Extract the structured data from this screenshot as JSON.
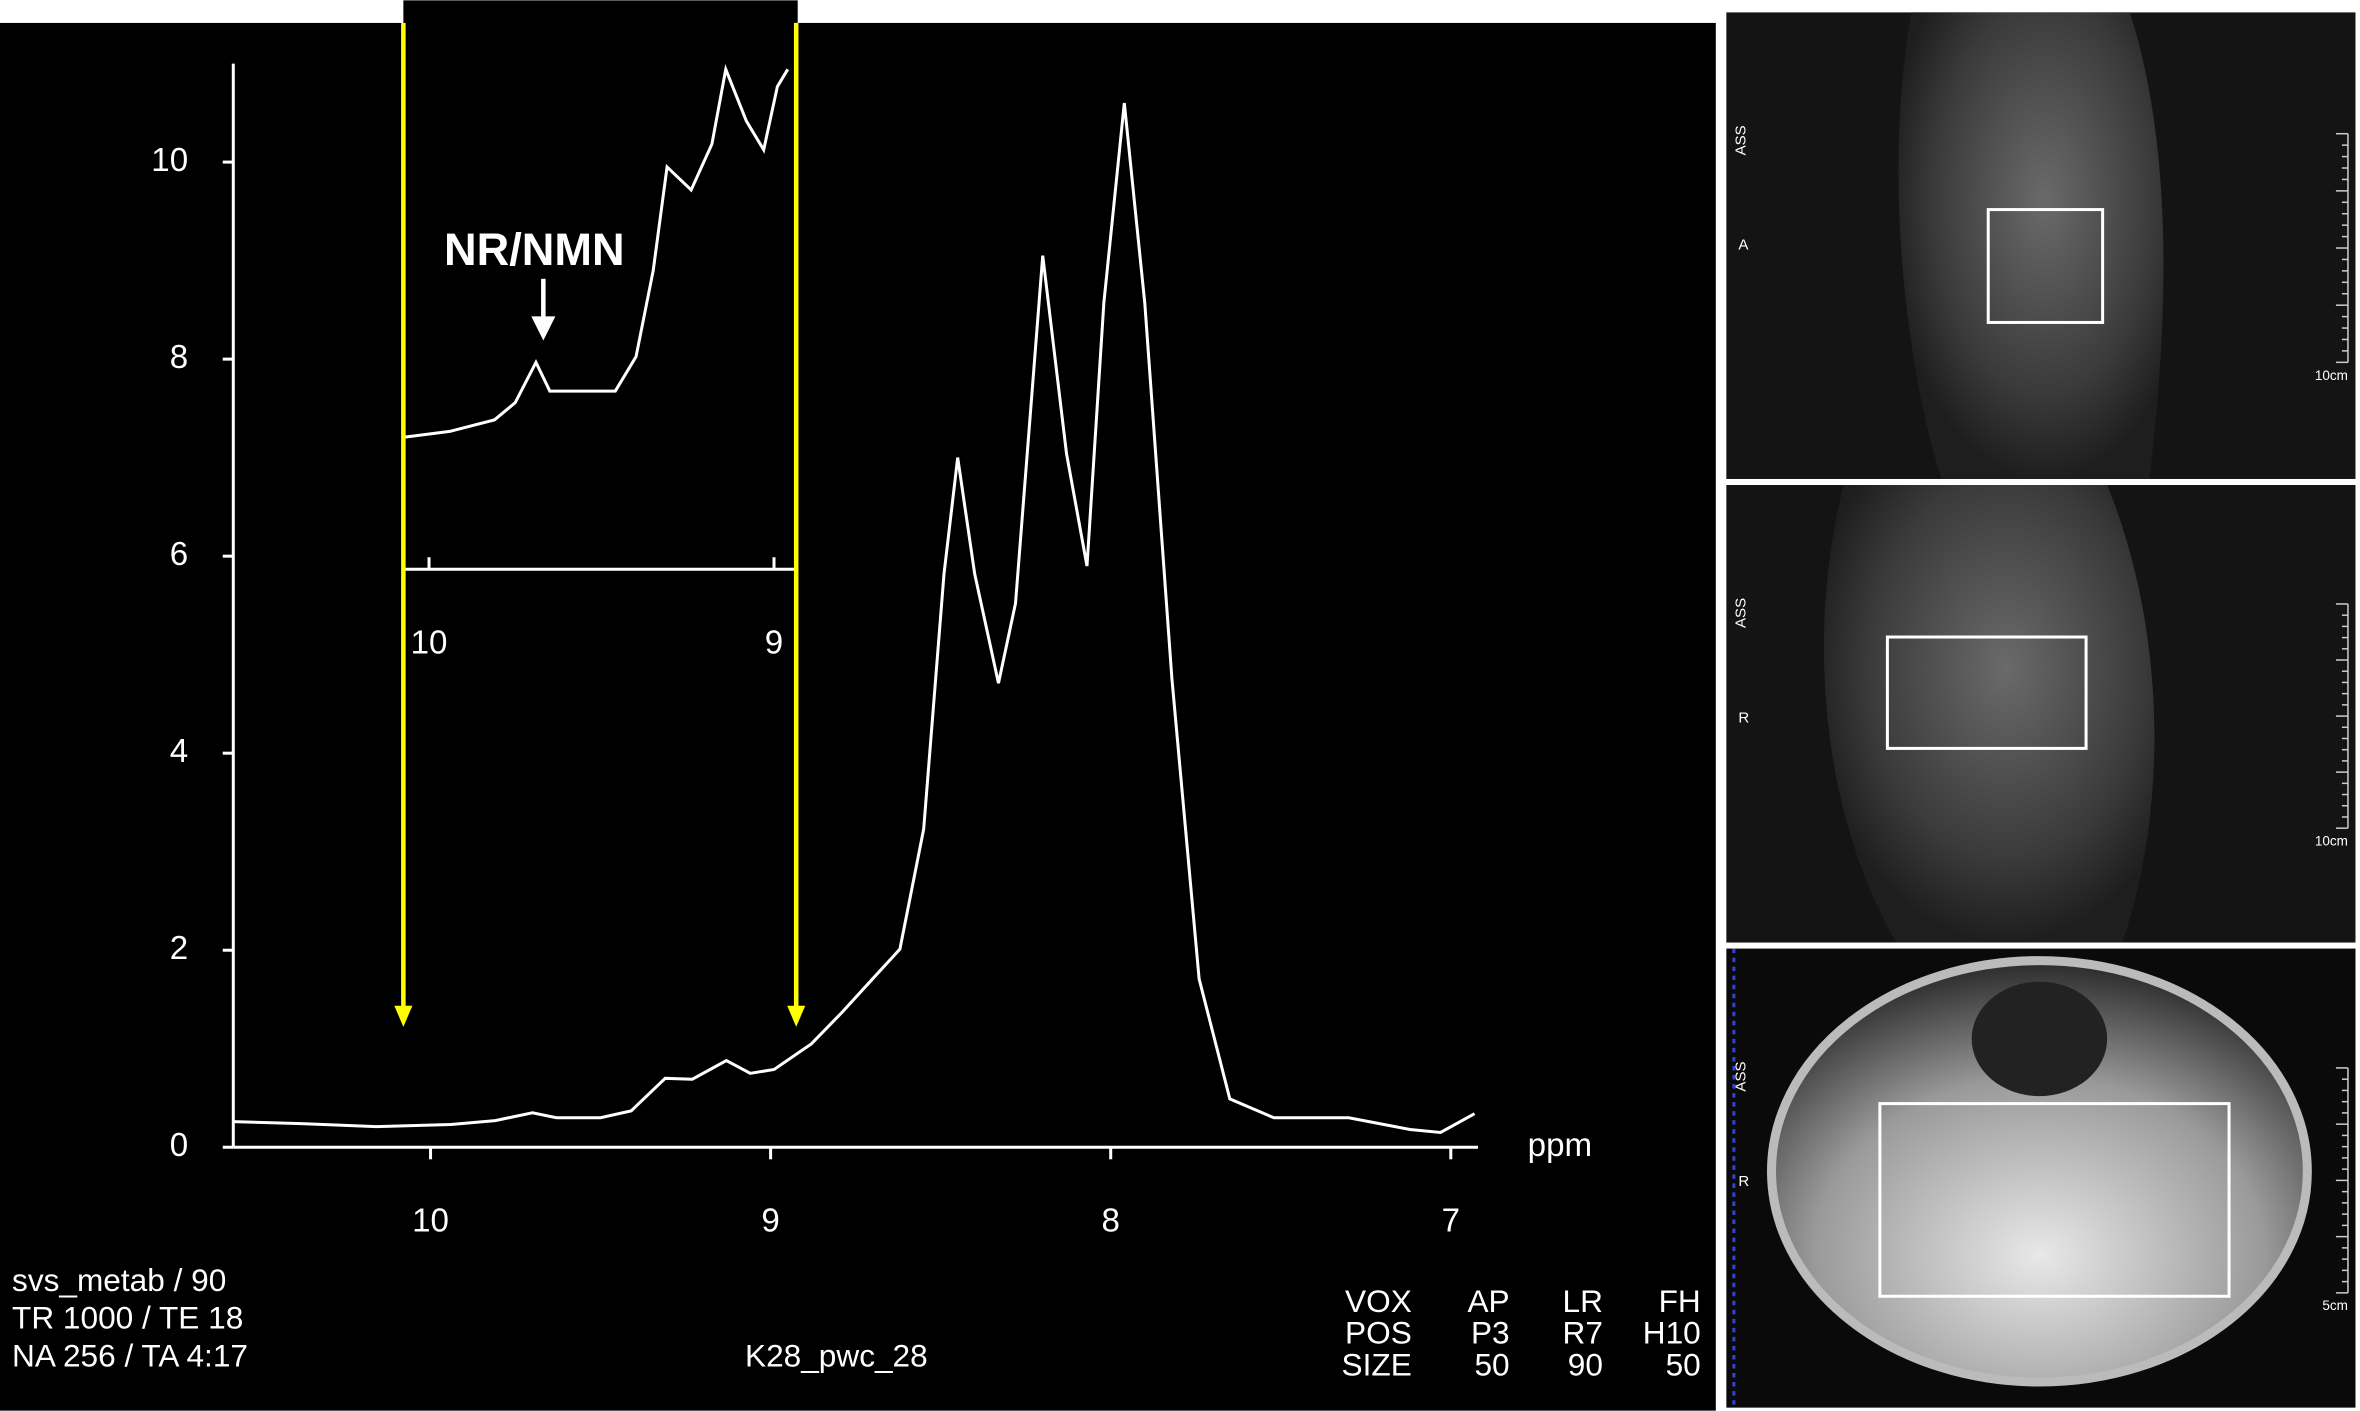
{
  "chart_data": [
    {
      "type": "line",
      "x_label": "ppm",
      "color": "#ffffff",
      "x": [
        10.58,
        10.38,
        10.16,
        9.94,
        9.81,
        9.7,
        9.63,
        9.5,
        9.41,
        9.31,
        9.23,
        9.13,
        9.06,
        8.99,
        8.88,
        8.79,
        8.7,
        8.62,
        8.55,
        8.49,
        8.45,
        8.4,
        8.33,
        8.28,
        8.2,
        8.13,
        8.07,
        8.02,
        7.96,
        7.9,
        7.82,
        7.74,
        7.65,
        7.52,
        7.3,
        7.12,
        7.03,
        6.93
      ],
      "values": [
        0.26,
        0.24,
        0.21,
        0.23,
        0.27,
        0.35,
        0.3,
        0.3,
        0.37,
        0.7,
        0.69,
        0.88,
        0.75,
        0.79,
        1.05,
        1.37,
        1.71,
        2.01,
        3.23,
        5.82,
        7.0,
        5.82,
        4.71,
        5.52,
        9.05,
        7.04,
        5.9,
        8.57,
        10.6,
        8.57,
        4.76,
        1.71,
        0.49,
        0.3,
        0.3,
        0.18,
        0.15,
        0.34
      ],
      "xlim": [
        10.58,
        6.92
      ],
      "ylim": [
        0,
        11
      ],
      "xticks": [
        10,
        9,
        8,
        7
      ],
      "yticks": [
        0,
        2,
        4,
        6,
        8,
        10
      ]
    },
    {
      "type": "line",
      "annotation": "NR/NMN",
      "color": "#ffffff",
      "x": [
        10.07,
        9.94,
        9.81,
        9.75,
        9.69,
        9.65,
        9.55,
        9.46,
        9.4,
        9.35,
        9.31,
        9.24,
        9.18,
        9.14,
        9.08,
        9.03,
        8.99,
        8.96
      ],
      "values": [
        0.25,
        0.26,
        0.28,
        0.31,
        0.38,
        0.33,
        0.33,
        0.33,
        0.39,
        0.54,
        0.72,
        0.68,
        0.76,
        0.89,
        0.8,
        0.75,
        0.86,
        0.89
      ],
      "xlim": [
        10.07,
        8.94
      ],
      "ylim": [
        0.02,
        1.01
      ],
      "xticks": [
        10,
        9
      ],
      "annotation_x": 9.69
    }
  ],
  "scan_info": {
    "lines": [
      "svs_metab / 90",
      "TR 1000 / TE 18",
      "NA 256 / TA 4:17"
    ],
    "name": "K28_pwc_28",
    "table": [
      [
        "VOX",
        "AP",
        "LR",
        "FH"
      ],
      [
        "POS",
        "P3",
        "R7",
        "H10"
      ],
      [
        "SIZE",
        "50",
        "90",
        "50"
      ]
    ]
  },
  "views": [
    {
      "top": "ASS",
      "side": "A",
      "scale": "10cm"
    },
    {
      "top": "ASS",
      "side": "R",
      "scale": "10cm"
    },
    {
      "top": "ASS",
      "side": "R",
      "scale": "5cm"
    }
  ]
}
